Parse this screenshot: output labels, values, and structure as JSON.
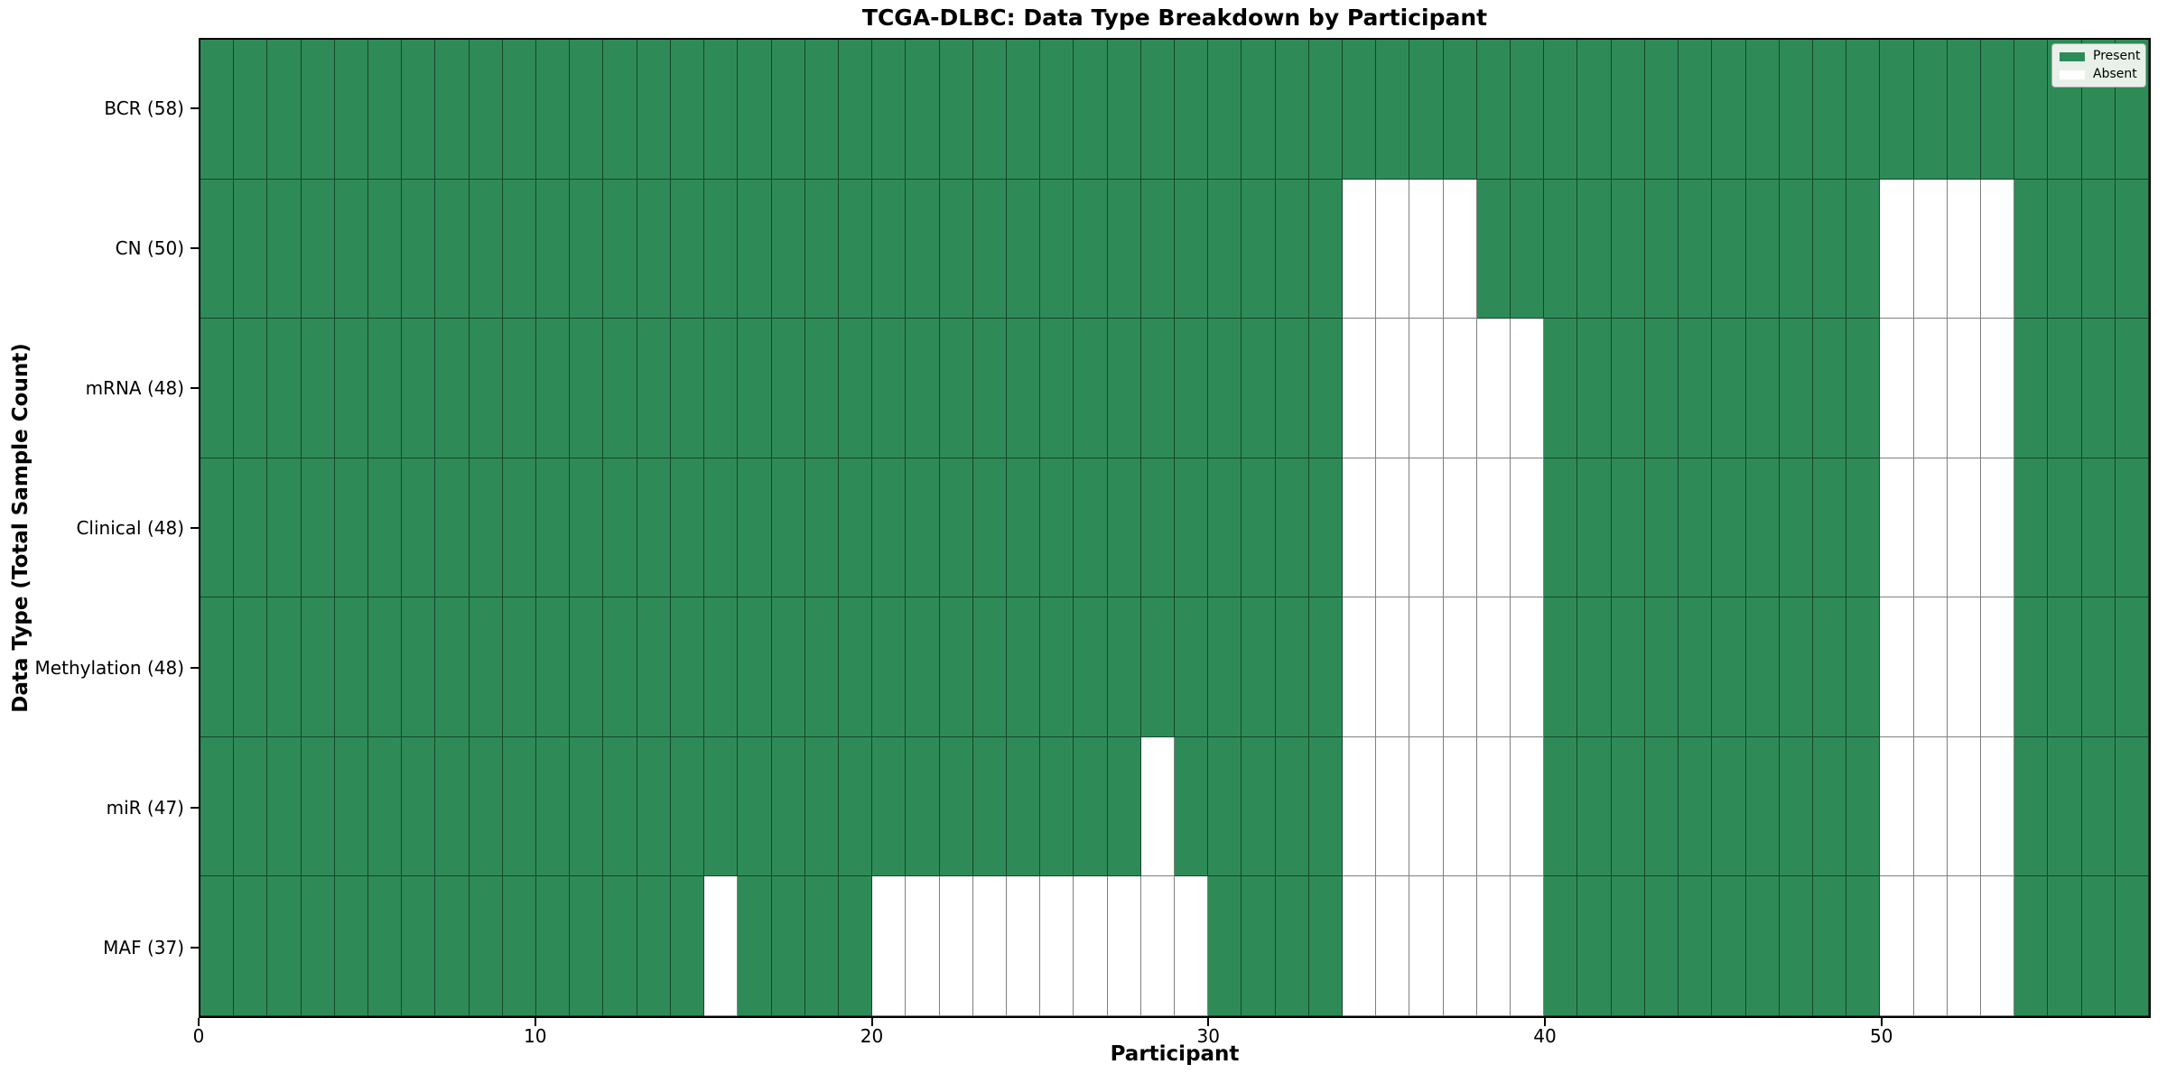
{
  "chart_data": {
    "type": "heatmap",
    "title": "TCGA-DLBC: Data Type Breakdown by Participant",
    "xlabel": "Participant",
    "ylabel": "Data Type (Total Sample Count)",
    "n_participants": 58,
    "x_ticks": [
      0,
      10,
      20,
      30,
      40,
      50
    ],
    "x_range": [
      0,
      58
    ],
    "grid": "cell-edges",
    "legend_position": "upper-right",
    "colors": {
      "present": "#2e8b57",
      "absent": "#ffffff",
      "cell_edge": "rgba(0,0,0,0.5)",
      "legend_background": "#e9f0ea"
    },
    "legend": {
      "entries": [
        {
          "label": "Present",
          "color": "#2e8b57"
        },
        {
          "label": "Absent",
          "color": "#ffffff"
        }
      ]
    },
    "rows": [
      {
        "label": "BCR (58)",
        "data_type": "BCR",
        "present_count": 58,
        "absent_participants": []
      },
      {
        "label": "CN (50)",
        "data_type": "CN",
        "present_count": 50,
        "absent_participants": [
          34,
          35,
          36,
          37,
          50,
          51,
          52,
          53
        ]
      },
      {
        "label": "mRNA (48)",
        "data_type": "mRNA",
        "present_count": 48,
        "absent_participants": [
          34,
          35,
          36,
          37,
          38,
          39,
          50,
          51,
          52,
          53
        ]
      },
      {
        "label": "Clinical (48)",
        "data_type": "Clinical",
        "present_count": 48,
        "absent_participants": [
          34,
          35,
          36,
          37,
          38,
          39,
          50,
          51,
          52,
          53
        ]
      },
      {
        "label": "Methylation (48)",
        "data_type": "Methylation",
        "present_count": 48,
        "absent_participants": [
          34,
          35,
          36,
          37,
          38,
          39,
          50,
          51,
          52,
          53
        ]
      },
      {
        "label": "miR (47)",
        "data_type": "miR",
        "present_count": 47,
        "absent_participants": [
          28,
          34,
          35,
          36,
          37,
          38,
          39,
          50,
          51,
          52,
          53
        ]
      },
      {
        "label": "MAF (37)",
        "data_type": "MAF",
        "present_count": 37,
        "absent_participants": [
          15,
          20,
          21,
          22,
          23,
          24,
          25,
          26,
          27,
          28,
          29,
          34,
          35,
          36,
          37,
          38,
          39,
          50,
          51,
          52,
          53
        ]
      }
    ]
  }
}
